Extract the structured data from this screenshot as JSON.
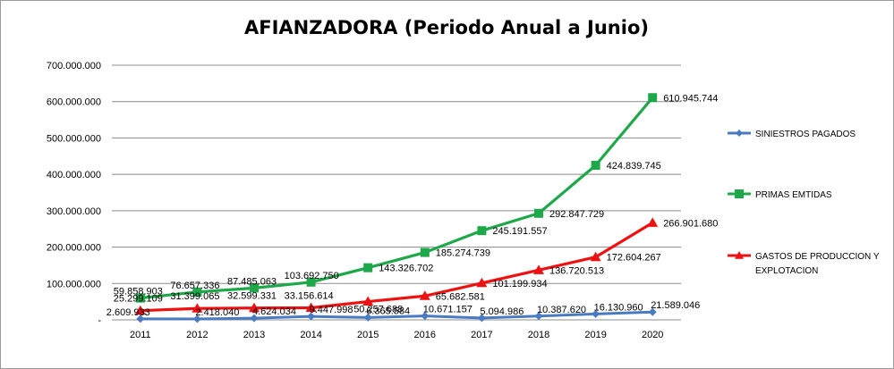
{
  "chart_data": {
    "type": "line",
    "title": "AFIANZADORA (Periodo Anual a Junio)",
    "categories": [
      "2011",
      "2012",
      "2013",
      "2014",
      "2015",
      "2016",
      "2017",
      "2018",
      "2019",
      "2020"
    ],
    "ylim": [
      0,
      700000000
    ],
    "y_ticks": [
      0,
      100000000,
      200000000,
      300000000,
      400000000,
      500000000,
      600000000,
      700000000
    ],
    "y_tick_labels": [
      "-",
      "100.000.000",
      "200.000.000",
      "300.000.000",
      "400.000.000",
      "500.000.000",
      "600.000.000",
      "700.000.000"
    ],
    "grid": true,
    "legend_position": "right",
    "series": [
      {
        "name": "SINIESTROS PAGADOS",
        "color": "#4a7bc1",
        "marker": "diamond",
        "values": [
          2609933,
          2418040,
          4624034,
          9447998,
          6365584,
          10671157,
          5094986,
          10387620,
          16130960,
          21589046
        ],
        "labels": [
          "2.609.933",
          "2.418.040",
          "4.624.034",
          "9.447.998",
          "6.365.584",
          "10.671.157",
          "5.094.986",
          "10.387.620",
          "16.130.960",
          "21.589.046"
        ]
      },
      {
        "name": "PRIMAS EMTIDAS",
        "color": "#1ea84a",
        "marker": "square",
        "values": [
          59858903,
          76657336,
          87485063,
          103692750,
          143326702,
          185274739,
          245191557,
          292847729,
          424839745,
          610945744
        ],
        "labels": [
          "59.858.903",
          "76.657.336",
          "87.485.063",
          "103.692.750",
          "143.326.702",
          "185.274.739",
          "245.191.557",
          "292.847.729",
          "424.839.745",
          "610.945.744"
        ]
      },
      {
        "name": "GASTOS DE PRODUCCION Y EXPLOTACION",
        "color": "#ee1111",
        "marker": "triangle",
        "values": [
          25299109,
          31399065,
          32599331,
          33156614,
          50257688,
          65682581,
          101199934,
          136720513,
          172604267,
          266901680
        ],
        "labels": [
          "25.299.109",
          "31.399.065",
          "32.599.331",
          "33.156.614",
          "50.257.688",
          "65.682.581",
          "101.199.934",
          "136.720.513",
          "172.604.267",
          "266.901.680"
        ]
      }
    ]
  }
}
